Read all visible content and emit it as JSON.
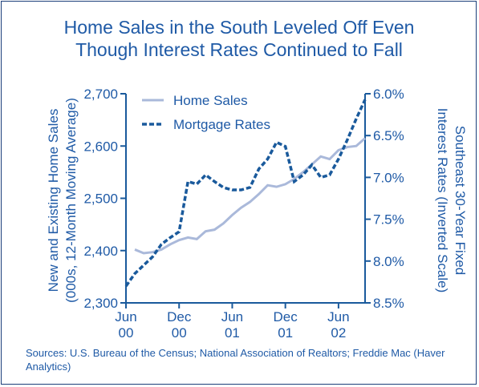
{
  "chart_data": {
    "type": "line",
    "title": [
      "Home Sales in the South Leveled Off Even",
      "Though Interest Rates Continued to Fall"
    ],
    "ylabel": [
      "New and Existing Home Sales",
      "(000s, 12-Month Moving Average)"
    ],
    "y2label": [
      "Southeast 30-Year Fixed",
      "Interest Rates (Inverted Scale)"
    ],
    "source": "Sources: U.S. Bureau of the Census; National Association of Realtors; Freddie Mac (Haver Analytics)",
    "xlim": [
      0,
      27
    ],
    "xticks": [
      {
        "value": 0,
        "label": "Jun 00"
      },
      {
        "value": 6,
        "label": "Dec 00"
      },
      {
        "value": 12,
        "label": "Jun 01"
      },
      {
        "value": 18,
        "label": "Dec 01"
      },
      {
        "value": 24,
        "label": "Jun 02"
      }
    ],
    "ylim": [
      2300,
      2700
    ],
    "yticks": [
      {
        "value": 2300,
        "label": "2,300"
      },
      {
        "value": 2400,
        "label": "2,400"
      },
      {
        "value": 2500,
        "label": "2,500"
      },
      {
        "value": 2600,
        "label": "2,600"
      },
      {
        "value": 2700,
        "label": "2,700"
      }
    ],
    "y2lim": [
      8.5,
      6.0
    ],
    "y2_inverted": true,
    "y2ticks": [
      {
        "value": 6.0,
        "label": "6.0%"
      },
      {
        "value": 6.5,
        "label": "6.5%"
      },
      {
        "value": 7.0,
        "label": "7.0%"
      },
      {
        "value": 7.5,
        "label": "7.5%"
      },
      {
        "value": 8.0,
        "label": "8.0%"
      },
      {
        "value": 8.5,
        "label": "8.5%"
      }
    ],
    "legend": "upper left",
    "series": [
      {
        "name": "Home Sales",
        "color": "#aab9da",
        "dash": false,
        "x": [
          1,
          2,
          3,
          4,
          5,
          6,
          7,
          8,
          9,
          10,
          11,
          12,
          13,
          14,
          15,
          16,
          17,
          18,
          19,
          20,
          21,
          22,
          23,
          24,
          25,
          26,
          27
        ],
        "values": [
          2402,
          2395,
          2397,
          2402,
          2412,
          2420,
          2425,
          2422,
          2437,
          2440,
          2452,
          2468,
          2482,
          2493,
          2508,
          2525,
          2522,
          2527,
          2537,
          2550,
          2565,
          2580,
          2575,
          2592,
          2598,
          2600,
          2615
        ]
      },
      {
        "name": "Mortgage Rates",
        "color": "#1a5a9c",
        "dash": true,
        "axis": "y2",
        "x": [
          0,
          1,
          2,
          3,
          4,
          5,
          6,
          7,
          8,
          9,
          10,
          11,
          12,
          13,
          14,
          15,
          16,
          17,
          18,
          19,
          20,
          21,
          22,
          23,
          24,
          25,
          26,
          27
        ],
        "values": [
          8.3,
          8.15,
          8.05,
          7.95,
          7.8,
          7.72,
          7.65,
          7.05,
          7.08,
          6.97,
          7.05,
          7.12,
          7.15,
          7.15,
          7.12,
          6.9,
          6.78,
          6.58,
          6.63,
          7.05,
          6.97,
          6.85,
          7.0,
          6.97,
          6.78,
          6.55,
          6.3,
          6.07
        ]
      }
    ]
  }
}
